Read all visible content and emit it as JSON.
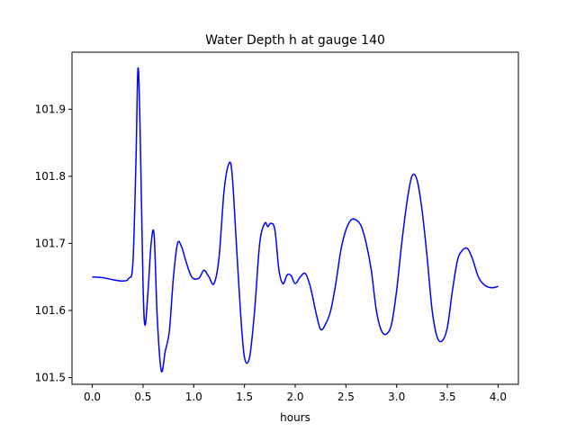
{
  "chart_data": {
    "type": "line",
    "title": "Water Depth h at gauge 140",
    "xlabel": "hours",
    "ylabel": "",
    "xlim": [
      -0.2,
      4.2
    ],
    "ylim": [
      101.49,
      101.985
    ],
    "xticks": [
      0.0,
      0.5,
      1.0,
      1.5,
      2.0,
      2.5,
      3.0,
      3.5,
      4.0
    ],
    "xtick_labels": [
      "0.0",
      "0.5",
      "1.0",
      "1.5",
      "2.0",
      "2.5",
      "3.0",
      "3.5",
      "4.0"
    ],
    "yticks": [
      101.5,
      101.6,
      101.7,
      101.8,
      101.9
    ],
    "ytick_labels": [
      "101.5",
      "101.6",
      "101.7",
      "101.8",
      "101.9"
    ],
    "grid": false,
    "color": "#0000ff",
    "series": [
      {
        "x": [
          0.0,
          0.1,
          0.2,
          0.3,
          0.36,
          0.4,
          0.43,
          0.45,
          0.47,
          0.5,
          0.52,
          0.55,
          0.58,
          0.61,
          0.64,
          0.68,
          0.72,
          0.76,
          0.8,
          0.84,
          0.88,
          0.92,
          0.98,
          1.05,
          1.1,
          1.15,
          1.2,
          1.25,
          1.3,
          1.35,
          1.38,
          1.42,
          1.46,
          1.5,
          1.55,
          1.6,
          1.65,
          1.7,
          1.73,
          1.76,
          1.8,
          1.84,
          1.88,
          1.92,
          1.96,
          2.0,
          2.05,
          2.1,
          2.15,
          2.2,
          2.25,
          2.3,
          2.35,
          2.4,
          2.45,
          2.5,
          2.55,
          2.6,
          2.65,
          2.7,
          2.75,
          2.8,
          2.85,
          2.9,
          2.95,
          3.0,
          3.05,
          3.1,
          3.15,
          3.2,
          3.25,
          3.3,
          3.35,
          3.4,
          3.45,
          3.5,
          3.55,
          3.6,
          3.65,
          3.7,
          3.75,
          3.8,
          3.85,
          3.9,
          3.95,
          4.0
        ],
        "y": [
          101.65,
          101.649,
          101.646,
          101.644,
          101.648,
          101.67,
          101.82,
          101.96,
          101.88,
          101.64,
          101.578,
          101.63,
          101.7,
          101.712,
          101.59,
          101.51,
          101.54,
          101.57,
          101.65,
          101.7,
          101.695,
          101.675,
          101.65,
          101.648,
          101.66,
          101.65,
          101.64,
          101.68,
          101.78,
          101.82,
          101.8,
          101.7,
          101.6,
          101.53,
          101.53,
          101.6,
          101.7,
          101.73,
          101.725,
          101.73,
          101.72,
          101.66,
          101.64,
          101.653,
          101.652,
          101.64,
          101.65,
          101.655,
          101.635,
          101.6,
          101.572,
          101.58,
          101.6,
          101.64,
          101.69,
          101.72,
          101.735,
          101.735,
          101.726,
          101.7,
          101.66,
          101.6,
          101.57,
          101.565,
          101.58,
          101.63,
          101.7,
          101.76,
          101.8,
          101.795,
          101.75,
          101.68,
          101.6,
          101.56,
          101.555,
          101.575,
          101.63,
          101.675,
          101.69,
          101.692,
          101.676,
          101.652,
          101.64,
          101.635,
          101.634,
          101.636
        ]
      }
    ]
  }
}
